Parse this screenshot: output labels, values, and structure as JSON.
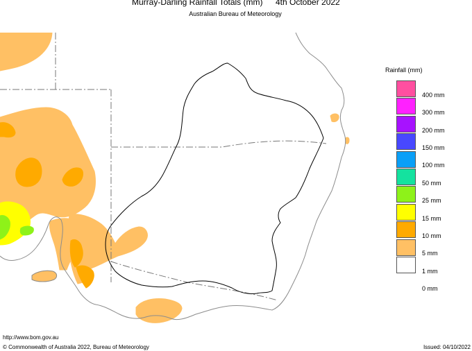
{
  "header": {
    "title": "Murray-Darling Rainfall Totals (mm)",
    "date": "4th October 2022",
    "subtitle": "Australian Bureau of Meteorology"
  },
  "legend": {
    "title": "Rainfall (mm)",
    "items": [
      {
        "label": "400 mm",
        "color": "#ff4fa0"
      },
      {
        "label": "300 mm",
        "color": "#ff21ff"
      },
      {
        "label": "200 mm",
        "color": "#a712ff"
      },
      {
        "label": "150 mm",
        "color": "#4848ff"
      },
      {
        "label": "100 mm",
        "color": "#0a9ff7"
      },
      {
        "label": "50 mm",
        "color": "#14e29f"
      },
      {
        "label": "25 mm",
        "color": "#8ef219"
      },
      {
        "label": "15 mm",
        "color": "#ffff00"
      },
      {
        "label": "10 mm",
        "color": "#ffaa00"
      },
      {
        "label": "5 mm",
        "color": "#ffc064"
      },
      {
        "label": "1 mm",
        "color": "#ffffff"
      },
      {
        "label": "0 mm",
        "color": ""
      }
    ]
  },
  "footer": {
    "url": "http://www.bom.gov.au",
    "copyright": "© Commonwealth of Australia 2022, Bureau of Meteorology",
    "issued": "Issued: 04/10/2022"
  },
  "colors": {
    "rain_1mm": "#ffc064",
    "rain_5mm": "#ffaa00",
    "rain_10mm": "#ffff00",
    "rain_15mm": "#8ef219",
    "coast": "#8c8c8c",
    "basin_outline": "#000000"
  }
}
